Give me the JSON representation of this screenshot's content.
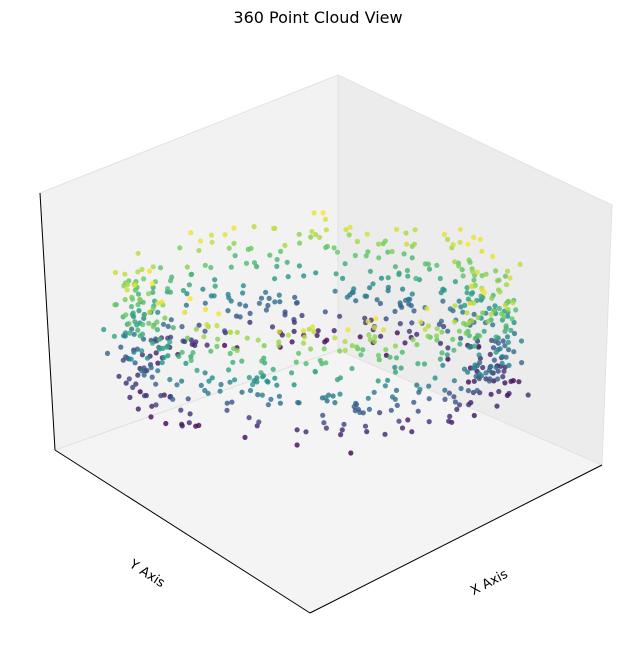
{
  "chart_data": {
    "type": "scatter",
    "title": "360 Point Cloud View",
    "xlabel": "X Axis",
    "ylabel": "Y Axis",
    "zlabel": "",
    "projection": "3d",
    "xlim": [
      -10,
      10
    ],
    "ylim": [
      -10,
      10
    ],
    "zlim": [
      -2,
      2
    ],
    "grid": false,
    "colormap": "viridis",
    "point_count": 800,
    "shape": "ring of points, radius about 5, z spanning about -1 to 1, color mapped to z"
  },
  "colors": {
    "pane_left": "#f2f2f2",
    "pane_right": "#ececec",
    "pane_floor": "#e6e6e6",
    "axis_line": "#000000",
    "pane_edge": "#e0e0e0"
  }
}
